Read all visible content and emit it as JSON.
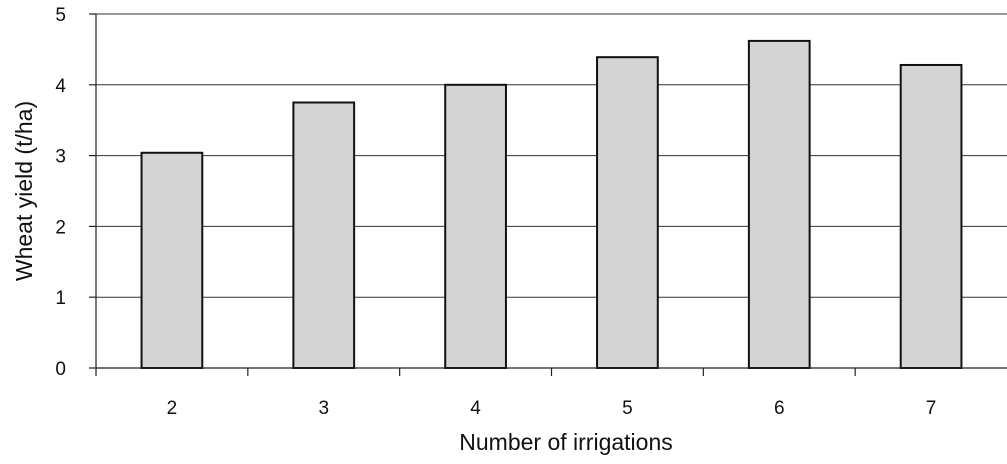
{
  "chart_data": {
    "type": "bar",
    "title": "",
    "xlabel": "Number of irrigations",
    "ylabel": "Wheat yield (t/ha)",
    "categories": [
      "2",
      "3",
      "4",
      "5",
      "6",
      "7"
    ],
    "values": [
      3.04,
      3.75,
      4.0,
      4.39,
      4.62,
      4.28
    ],
    "ylim": [
      0,
      5
    ],
    "yticks": [
      "0",
      "1",
      "2",
      "3",
      "4",
      "5"
    ],
    "grid": "horizontal",
    "legend": "none",
    "colors": {
      "bar_fill": "#d4d4d4",
      "bar_stroke": "#111111",
      "grid": "#333333"
    }
  }
}
